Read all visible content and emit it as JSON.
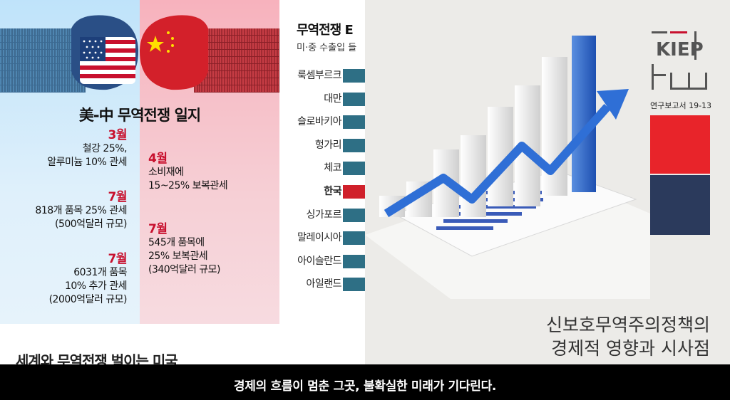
{
  "left_panel": {
    "title": "美-中 무역전쟁 일지",
    "usa_events": [
      {
        "month": "3월",
        "lines": [
          "철강 25%,",
          "알루미늄 10% 관세"
        ]
      },
      {
        "month": "7월",
        "lines": [
          "818개 품목 25% 관세",
          "(500억달러 규모)"
        ]
      },
      {
        "month": "7월",
        "lines": [
          "6031개 품목",
          "10% 추가 관세",
          "(2000억달러 규모)"
        ]
      }
    ],
    "china_events": [
      {
        "month": "4월",
        "lines": [
          "소비재에",
          "15~25% 보복관세"
        ]
      },
      {
        "month": "7월",
        "lines": [
          "545개 품목에",
          "25% 보복관세",
          "(340억달러 규모)"
        ]
      }
    ],
    "bottom_headline": "세계와 무역전쟁 벌이는 미국",
    "colors": {
      "month": "#c8102e"
    }
  },
  "mid_panel": {
    "title": "무역전쟁 E",
    "subtitle": "미·중 수출입 들",
    "countries": [
      {
        "name": "룩셈부르크",
        "highlight": false
      },
      {
        "name": "대만",
        "highlight": false
      },
      {
        "name": "슬로바키아",
        "highlight": false
      },
      {
        "name": "헝가리",
        "highlight": false
      },
      {
        "name": "체코",
        "highlight": false
      },
      {
        "name": "한국",
        "highlight": true
      },
      {
        "name": "싱가포르",
        "highlight": false
      },
      {
        "name": "말레이시아",
        "highlight": false
      },
      {
        "name": "아이슬란드",
        "highlight": false
      },
      {
        "name": "아일랜드",
        "highlight": false
      }
    ],
    "colors": {
      "bar": "#2e6f85",
      "highlight": "#d0202a"
    }
  },
  "right_panel": {
    "logo_text": "KIEP",
    "series_label": "연구보고서 19-13",
    "cover_title_lines": [
      "신보호무역주의정책의",
      "경제적 영향과 시사점"
    ],
    "colors": {
      "red": "#e8242a",
      "navy": "#2b3a5c"
    }
  },
  "subtitle": "경제의 흐름이 멈춘 그곳, 불확실한 미래가 기다린다."
}
